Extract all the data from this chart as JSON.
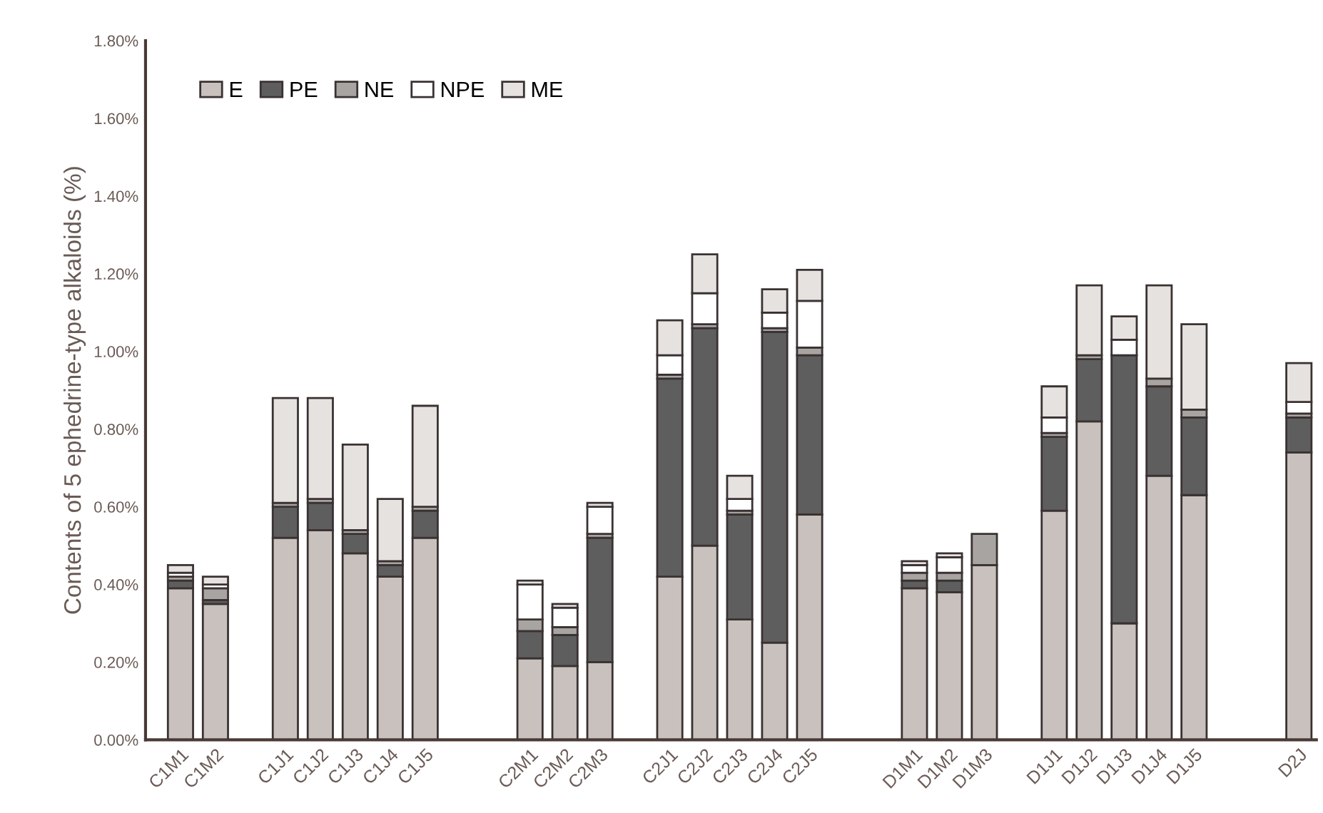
{
  "chart_data": {
    "type": "bar",
    "stacked": true,
    "ylabel": "Contents of 5 ephedrine-type alkaloids (%)",
    "categories": [
      "C1M1",
      "C1M2",
      null,
      "C1J1",
      "C1J2",
      "C1J3",
      "C1J4",
      "C1J5",
      null,
      null,
      "C2M1",
      "C2M2",
      "C2M3",
      null,
      "C2J1",
      "C2J2",
      "C2J3",
      "C2J4",
      "C2J5",
      null,
      null,
      "D1M1",
      "D1M2",
      "D1M3",
      null,
      "D1J1",
      "D1J2",
      "D1J3",
      "D1J4",
      "D1J5",
      null,
      null,
      "D2J"
    ],
    "series": [
      {
        "name": "E",
        "color": "#c9c1bd",
        "values": [
          0.39,
          0.35,
          null,
          0.52,
          0.54,
          0.48,
          0.42,
          0.52,
          null,
          null,
          0.21,
          0.19,
          0.2,
          null,
          0.42,
          0.5,
          0.31,
          0.25,
          0.58,
          null,
          null,
          0.39,
          0.38,
          0.45,
          null,
          0.59,
          0.82,
          0.3,
          0.68,
          0.63,
          null,
          null,
          0.74
        ]
      },
      {
        "name": "PE",
        "color": "#5e5e5e",
        "values": [
          0.02,
          0.01,
          null,
          0.08,
          0.07,
          0.05,
          0.03,
          0.07,
          null,
          null,
          0.07,
          0.08,
          0.32,
          null,
          0.51,
          0.56,
          0.27,
          0.8,
          0.41,
          null,
          null,
          0.02,
          0.03,
          0,
          null,
          0.19,
          0.16,
          0.69,
          0.23,
          0.2,
          null,
          null,
          0.09
        ]
      },
      {
        "name": "NE",
        "color": "#a8a4a2",
        "values": [
          0.01,
          0.03,
          null,
          0.01,
          0.01,
          0.01,
          0.01,
          0.01,
          null,
          null,
          0.03,
          0.02,
          0.01,
          null,
          0.01,
          0.01,
          0.01,
          0.01,
          0.02,
          null,
          null,
          0.02,
          0.02,
          0.08,
          null,
          0.01,
          0.01,
          0,
          0.02,
          0.02,
          null,
          null,
          0.01
        ]
      },
      {
        "name": "NPE",
        "color": "#ffffff",
        "values": [
          0.01,
          0.01,
          null,
          0,
          0,
          0,
          0,
          0,
          null,
          null,
          0.09,
          0.05,
          0.07,
          null,
          0.05,
          0.08,
          0.03,
          0.04,
          0.12,
          null,
          null,
          0.02,
          0.04,
          0,
          null,
          0.04,
          0,
          0.04,
          0,
          0,
          null,
          null,
          0.03
        ]
      },
      {
        "name": "ME",
        "color": "#e6e2df",
        "values": [
          0.02,
          0.02,
          null,
          0.27,
          0.26,
          0.22,
          0.16,
          0.26,
          null,
          null,
          0.01,
          0.01,
          0.01,
          null,
          0.09,
          0.1,
          0.06,
          0.06,
          0.08,
          null,
          null,
          0.01,
          0.01,
          0,
          null,
          0.08,
          0.18,
          0.06,
          0.24,
          0.22,
          null,
          null,
          0.1
        ]
      }
    ],
    "ylim": [
      0,
      1.8
    ],
    "yticks": [
      {
        "value": 0,
        "label": "0.00%"
      },
      {
        "value": 0.2,
        "label": "0.20%"
      },
      {
        "value": 0.4,
        "label": "0.40%"
      },
      {
        "value": 0.6,
        "label": "0.60%"
      },
      {
        "value": 0.8,
        "label": "0.80%"
      },
      {
        "value": 1.0,
        "label": "1.00%"
      },
      {
        "value": 1.2,
        "label": "1.20%"
      },
      {
        "value": 1.4,
        "label": "1.40%"
      },
      {
        "value": 1.6,
        "label": "1.60%"
      },
      {
        "value": 1.8,
        "label": "1.80%"
      }
    ],
    "legend": "top left",
    "grid": false
  }
}
